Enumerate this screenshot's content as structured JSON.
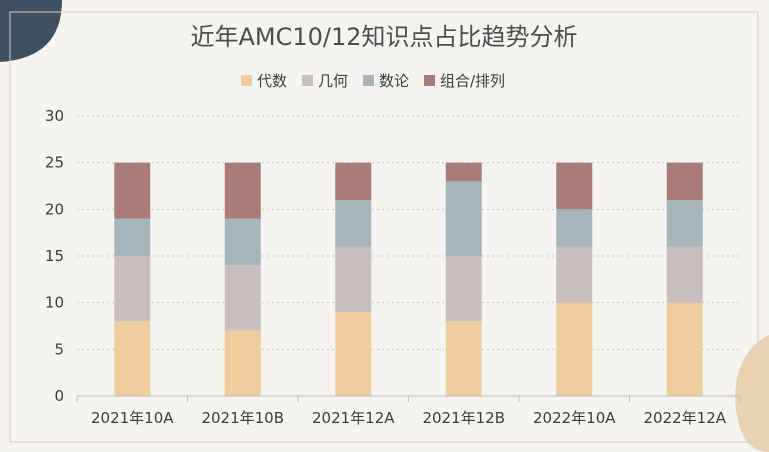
{
  "chart_data": {
    "type": "bar",
    "stacked": true,
    "title": "近年AMC10/12知识点占比趋势分析",
    "categories": [
      "2021年10A",
      "2021年10B",
      "2021年12A",
      "2021年12B",
      "2022年10A",
      "2022年12A"
    ],
    "series": [
      {
        "name": "代数",
        "color": "#efcd9e",
        "values": [
          8,
          7,
          9,
          8,
          10,
          10
        ]
      },
      {
        "name": "几何",
        "color": "#c7bebd",
        "values": [
          7,
          7,
          7,
          7,
          6,
          6
        ]
      },
      {
        "name": "数论",
        "color": "#a6b4bc",
        "values": [
          4,
          5,
          5,
          8,
          4,
          5
        ]
      },
      {
        "name": "组合/排列",
        "color": "#a97c79",
        "values": [
          6,
          6,
          4,
          2,
          5,
          4
        ]
      }
    ],
    "ylim": [
      0,
      30
    ],
    "yticks": [
      0,
      5,
      10,
      15,
      20,
      25,
      30
    ],
    "grid": "horizontal dotted",
    "legend_position": "top-center"
  },
  "colors": {
    "background": "#f6f4f1",
    "plot_border": "#e3c8b8",
    "corner_dark": "#3e4f60",
    "corner_tan": "#e9d2b3"
  }
}
